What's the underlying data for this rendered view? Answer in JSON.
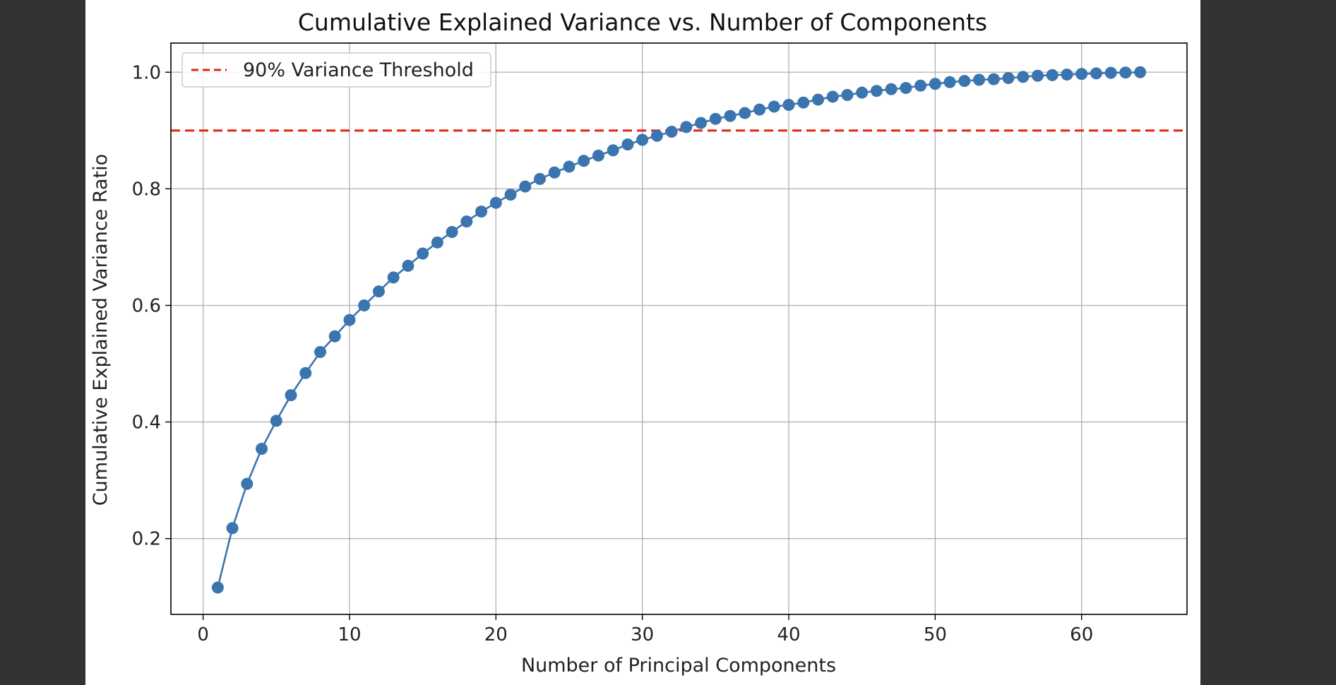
{
  "chart_data": {
    "type": "line",
    "title": "Cumulative Explained Variance vs. Number of Components",
    "xlabel": "Number of Principal Components",
    "ylabel": "Cumulative Explained Variance Ratio",
    "xlim": [
      -2.2,
      67.2
    ],
    "ylim": [
      0.07,
      1.05
    ],
    "xticks": [
      0,
      10,
      20,
      30,
      40,
      50,
      60
    ],
    "yticks": [
      0.2,
      0.4,
      0.6,
      0.8,
      1.0
    ],
    "xtick_labels": [
      "0",
      "10",
      "20",
      "30",
      "40",
      "50",
      "60"
    ],
    "ytick_labels": [
      "0.2",
      "0.4",
      "0.6",
      "0.8",
      "1.0"
    ],
    "grid": true,
    "legend_position": "top-left",
    "series": [
      {
        "color": "#3b75af",
        "marker": "circle",
        "x": [
          1,
          2,
          3,
          4,
          5,
          6,
          7,
          8,
          9,
          10,
          11,
          12,
          13,
          14,
          15,
          16,
          17,
          18,
          19,
          20,
          21,
          22,
          23,
          24,
          25,
          26,
          27,
          28,
          29,
          30,
          31,
          32,
          33,
          34,
          35,
          36,
          37,
          38,
          39,
          40,
          41,
          42,
          43,
          44,
          45,
          46,
          47,
          48,
          49,
          50,
          51,
          52,
          53,
          54,
          55,
          56,
          57,
          58,
          59,
          60,
          61,
          62,
          63,
          64
        ],
        "values": [
          0.116,
          0.218,
          0.294,
          0.354,
          0.402,
          0.446,
          0.484,
          0.52,
          0.547,
          0.575,
          0.6,
          0.624,
          0.648,
          0.668,
          0.689,
          0.708,
          0.726,
          0.744,
          0.761,
          0.776,
          0.79,
          0.804,
          0.817,
          0.828,
          0.838,
          0.848,
          0.857,
          0.866,
          0.876,
          0.884,
          0.891,
          0.898,
          0.906,
          0.913,
          0.92,
          0.925,
          0.93,
          0.936,
          0.941,
          0.944,
          0.948,
          0.953,
          0.958,
          0.961,
          0.965,
          0.968,
          0.971,
          0.973,
          0.977,
          0.98,
          0.983,
          0.985,
          0.987,
          0.988,
          0.99,
          0.992,
          0.994,
          0.995,
          0.996,
          0.997,
          0.998,
          0.999,
          0.9995,
          1.0
        ]
      }
    ],
    "threshold": {
      "label": "90% Variance Threshold",
      "value": 0.9,
      "color": "#e0241a",
      "style": "dashed"
    }
  }
}
